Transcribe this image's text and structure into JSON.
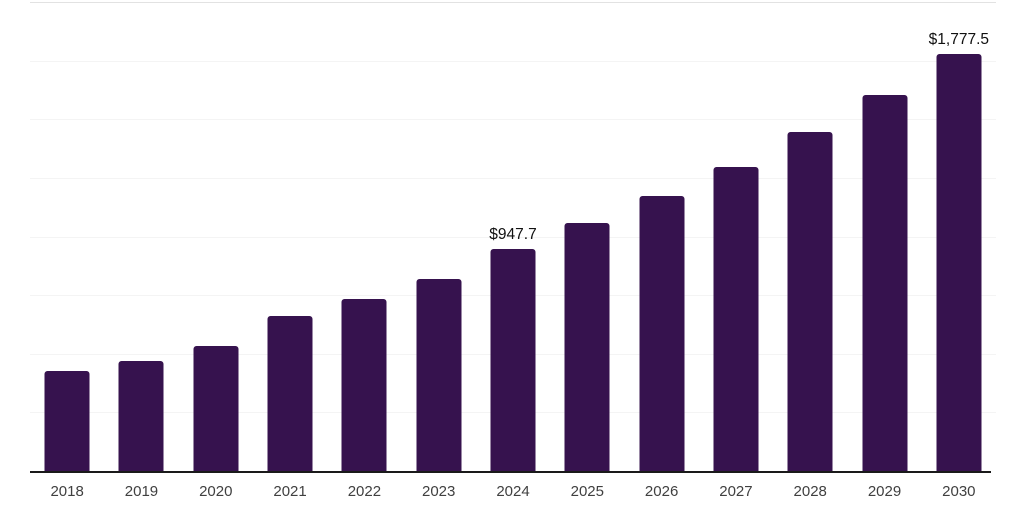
{
  "chart_data": {
    "type": "bar",
    "title": "",
    "xlabel": "",
    "ylabel": "",
    "categories": [
      "2018",
      "2019",
      "2020",
      "2021",
      "2022",
      "2023",
      "2024",
      "2025",
      "2026",
      "2027",
      "2028",
      "2029",
      "2030"
    ],
    "values": [
      427,
      469,
      533,
      661,
      732,
      820,
      947.7,
      1056,
      1174,
      1298,
      1444,
      1604,
      1777.5
    ],
    "point_labels": [
      {
        "index": 6,
        "text": "$947.7"
      },
      {
        "index": 12,
        "text": "$1,777.5"
      }
    ],
    "ylim": [
      0,
      2000
    ],
    "gridline_interval": 250,
    "grid": true,
    "legend": false,
    "y_axis_tick_labels_visible": false
  },
  "colors": {
    "background": "#ffffff",
    "bar": "#36124E",
    "axis_line": "#1a1a1a",
    "gridline": "#f4f4f4",
    "gridline_top": "#e2e2e2",
    "value_label": "#111111",
    "tick_label": "#404040"
  }
}
